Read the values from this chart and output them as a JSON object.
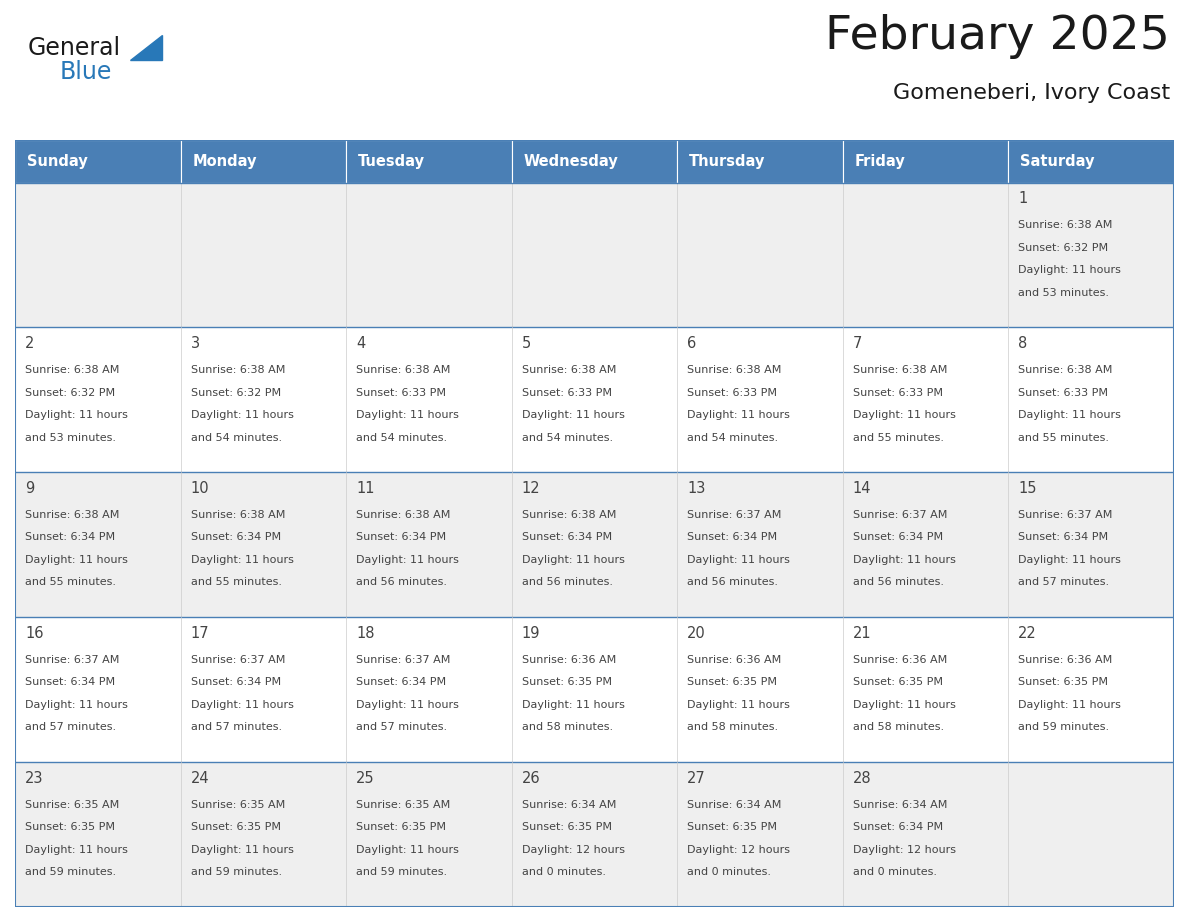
{
  "title": "February 2025",
  "subtitle": "Gomeneberi, Ivory Coast",
  "days_of_week": [
    "Sunday",
    "Monday",
    "Tuesday",
    "Wednesday",
    "Thursday",
    "Friday",
    "Saturday"
  ],
  "header_bg": "#4a7fb5",
  "header_text": "#ffffff",
  "cell_bg_odd": "#efefef",
  "cell_bg_even": "#ffffff",
  "border_color": "#4a7fb5",
  "text_color": "#444444",
  "title_color": "#1a1a1a",
  "logo_general_color": "#1a1a1a",
  "logo_blue_color": "#2878b8",
  "calendar_data": [
    [
      null,
      null,
      null,
      null,
      null,
      null,
      {
        "day": 1,
        "sunrise": "6:38 AM",
        "sunset": "6:32 PM",
        "daylight_line1": "Daylight: 11 hours",
        "daylight_line2": "and 53 minutes."
      }
    ],
    [
      {
        "day": 2,
        "sunrise": "6:38 AM",
        "sunset": "6:32 PM",
        "daylight_line1": "Daylight: 11 hours",
        "daylight_line2": "and 53 minutes."
      },
      {
        "day": 3,
        "sunrise": "6:38 AM",
        "sunset": "6:32 PM",
        "daylight_line1": "Daylight: 11 hours",
        "daylight_line2": "and 54 minutes."
      },
      {
        "day": 4,
        "sunrise": "6:38 AM",
        "sunset": "6:33 PM",
        "daylight_line1": "Daylight: 11 hours",
        "daylight_line2": "and 54 minutes."
      },
      {
        "day": 5,
        "sunrise": "6:38 AM",
        "sunset": "6:33 PM",
        "daylight_line1": "Daylight: 11 hours",
        "daylight_line2": "and 54 minutes."
      },
      {
        "day": 6,
        "sunrise": "6:38 AM",
        "sunset": "6:33 PM",
        "daylight_line1": "Daylight: 11 hours",
        "daylight_line2": "and 54 minutes."
      },
      {
        "day": 7,
        "sunrise": "6:38 AM",
        "sunset": "6:33 PM",
        "daylight_line1": "Daylight: 11 hours",
        "daylight_line2": "and 55 minutes."
      },
      {
        "day": 8,
        "sunrise": "6:38 AM",
        "sunset": "6:33 PM",
        "daylight_line1": "Daylight: 11 hours",
        "daylight_line2": "and 55 minutes."
      }
    ],
    [
      {
        "day": 9,
        "sunrise": "6:38 AM",
        "sunset": "6:34 PM",
        "daylight_line1": "Daylight: 11 hours",
        "daylight_line2": "and 55 minutes."
      },
      {
        "day": 10,
        "sunrise": "6:38 AM",
        "sunset": "6:34 PM",
        "daylight_line1": "Daylight: 11 hours",
        "daylight_line2": "and 55 minutes."
      },
      {
        "day": 11,
        "sunrise": "6:38 AM",
        "sunset": "6:34 PM",
        "daylight_line1": "Daylight: 11 hours",
        "daylight_line2": "and 56 minutes."
      },
      {
        "day": 12,
        "sunrise": "6:38 AM",
        "sunset": "6:34 PM",
        "daylight_line1": "Daylight: 11 hours",
        "daylight_line2": "and 56 minutes."
      },
      {
        "day": 13,
        "sunrise": "6:37 AM",
        "sunset": "6:34 PM",
        "daylight_line1": "Daylight: 11 hours",
        "daylight_line2": "and 56 minutes."
      },
      {
        "day": 14,
        "sunrise": "6:37 AM",
        "sunset": "6:34 PM",
        "daylight_line1": "Daylight: 11 hours",
        "daylight_line2": "and 56 minutes."
      },
      {
        "day": 15,
        "sunrise": "6:37 AM",
        "sunset": "6:34 PM",
        "daylight_line1": "Daylight: 11 hours",
        "daylight_line2": "and 57 minutes."
      }
    ],
    [
      {
        "day": 16,
        "sunrise": "6:37 AM",
        "sunset": "6:34 PM",
        "daylight_line1": "Daylight: 11 hours",
        "daylight_line2": "and 57 minutes."
      },
      {
        "day": 17,
        "sunrise": "6:37 AM",
        "sunset": "6:34 PM",
        "daylight_line1": "Daylight: 11 hours",
        "daylight_line2": "and 57 minutes."
      },
      {
        "day": 18,
        "sunrise": "6:37 AM",
        "sunset": "6:34 PM",
        "daylight_line1": "Daylight: 11 hours",
        "daylight_line2": "and 57 minutes."
      },
      {
        "day": 19,
        "sunrise": "6:36 AM",
        "sunset": "6:35 PM",
        "daylight_line1": "Daylight: 11 hours",
        "daylight_line2": "and 58 minutes."
      },
      {
        "day": 20,
        "sunrise": "6:36 AM",
        "sunset": "6:35 PM",
        "daylight_line1": "Daylight: 11 hours",
        "daylight_line2": "and 58 minutes."
      },
      {
        "day": 21,
        "sunrise": "6:36 AM",
        "sunset": "6:35 PM",
        "daylight_line1": "Daylight: 11 hours",
        "daylight_line2": "and 58 minutes."
      },
      {
        "day": 22,
        "sunrise": "6:36 AM",
        "sunset": "6:35 PM",
        "daylight_line1": "Daylight: 11 hours",
        "daylight_line2": "and 59 minutes."
      }
    ],
    [
      {
        "day": 23,
        "sunrise": "6:35 AM",
        "sunset": "6:35 PM",
        "daylight_line1": "Daylight: 11 hours",
        "daylight_line2": "and 59 minutes."
      },
      {
        "day": 24,
        "sunrise": "6:35 AM",
        "sunset": "6:35 PM",
        "daylight_line1": "Daylight: 11 hours",
        "daylight_line2": "and 59 minutes."
      },
      {
        "day": 25,
        "sunrise": "6:35 AM",
        "sunset": "6:35 PM",
        "daylight_line1": "Daylight: 11 hours",
        "daylight_line2": "and 59 minutes."
      },
      {
        "day": 26,
        "sunrise": "6:34 AM",
        "sunset": "6:35 PM",
        "daylight_line1": "Daylight: 12 hours",
        "daylight_line2": "and 0 minutes."
      },
      {
        "day": 27,
        "sunrise": "6:34 AM",
        "sunset": "6:35 PM",
        "daylight_line1": "Daylight: 12 hours",
        "daylight_line2": "and 0 minutes."
      },
      {
        "day": 28,
        "sunrise": "6:34 AM",
        "sunset": "6:34 PM",
        "daylight_line1": "Daylight: 12 hours",
        "daylight_line2": "and 0 minutes."
      },
      null
    ]
  ]
}
